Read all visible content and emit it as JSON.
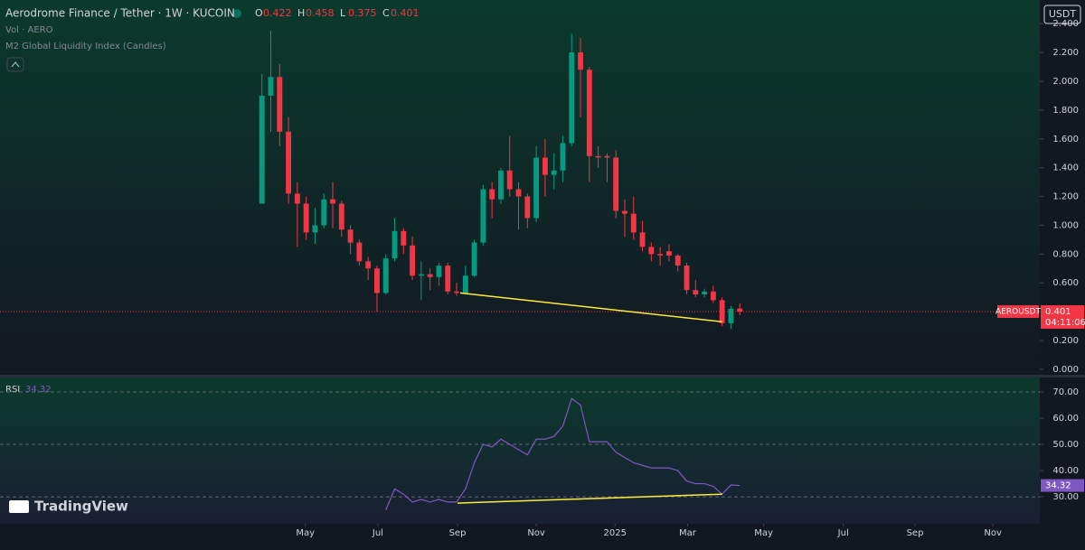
{
  "chart_data": {
    "type": "candlestick",
    "title": "Aerodrome Finance / Tether · 1W · KUCOIN",
    "ohlc_labels": [
      "O",
      "H",
      "L",
      "C"
    ],
    "indicators": [
      "Vol · AERO",
      "M2 Global Liquidity Index (Candles)"
    ],
    "currency": "USDT",
    "symbol": "AEROUSDT",
    "countdown": "04:11:06",
    "logo": "TradingView",
    "up_color": "#089981",
    "down_color": "#f23645",
    "open": [
      1.15,
      1.9,
      2.03,
      1.65,
      1.22,
      1.15,
      0.95,
      1.0,
      1.18,
      1.15,
      0.97,
      0.88,
      0.75,
      0.7,
      0.53,
      0.77,
      0.96,
      0.86,
      0.65,
      0.66,
      0.64,
      0.72,
      0.54,
      0.53,
      0.65,
      0.88,
      1.25,
      1.18,
      1.38,
      1.25,
      1.2,
      1.05,
      1.47,
      1.35,
      1.38,
      1.57,
      2.2,
      2.08,
      1.48,
      1.48,
      1.47,
      1.1,
      1.08,
      0.95,
      0.85,
      0.8,
      0.82,
      0.79,
      0.72,
      0.55,
      0.52,
      0.54,
      0.48,
      0.32,
      0.422
    ],
    "high": [
      2.05,
      2.35,
      2.12,
      1.75,
      1.3,
      1.2,
      1.12,
      1.22,
      1.3,
      1.17,
      1.0,
      0.9,
      0.78,
      0.72,
      0.8,
      1.05,
      0.98,
      0.92,
      0.75,
      0.7,
      0.74,
      0.74,
      0.6,
      0.72,
      0.9,
      1.28,
      1.3,
      1.4,
      1.62,
      1.3,
      1.22,
      1.55,
      1.6,
      1.5,
      1.62,
      2.33,
      2.3,
      2.1,
      1.55,
      1.5,
      1.52,
      1.18,
      1.2,
      1.03,
      0.88,
      0.85,
      0.87,
      0.8,
      0.74,
      0.62,
      0.56,
      0.58,
      0.5,
      0.44,
      0.458
    ],
    "low": [
      1.15,
      1.65,
      1.55,
      1.15,
      0.85,
      0.9,
      0.87,
      0.98,
      0.98,
      0.92,
      0.8,
      0.72,
      0.62,
      0.4,
      0.52,
      0.75,
      0.8,
      0.62,
      0.48,
      0.55,
      0.58,
      0.52,
      0.51,
      0.52,
      0.64,
      0.86,
      1.05,
      1.15,
      1.2,
      0.97,
      0.98,
      1.02,
      1.2,
      1.25,
      1.3,
      1.55,
      1.75,
      1.3,
      1.4,
      1.3,
      1.05,
      0.92,
      0.9,
      0.82,
      0.75,
      0.72,
      0.75,
      0.68,
      0.52,
      0.5,
      0.5,
      0.46,
      0.3,
      0.28,
      0.375
    ],
    "close": [
      1.9,
      2.03,
      1.65,
      1.22,
      1.15,
      0.95,
      1.0,
      1.18,
      1.15,
      0.97,
      0.88,
      0.75,
      0.7,
      0.53,
      0.77,
      0.96,
      0.86,
      0.65,
      0.66,
      0.64,
      0.72,
      0.54,
      0.53,
      0.65,
      0.88,
      1.25,
      1.18,
      1.38,
      1.25,
      1.2,
      1.05,
      1.47,
      1.35,
      1.38,
      1.57,
      2.2,
      2.08,
      1.48,
      1.47,
      1.47,
      1.1,
      1.08,
      0.95,
      0.85,
      0.8,
      0.79,
      0.79,
      0.72,
      0.55,
      0.52,
      0.54,
      0.48,
      0.32,
      0.42,
      0.401
    ],
    "ylim": [
      -0.038,
      2.564
    ],
    "yticks": [
      {
        "value": 0,
        "label": "0.000"
      },
      {
        "value": 0.2,
        "label": "0.200"
      },
      {
        "value": 0.4,
        "label": "0.400"
      },
      {
        "value": 0.6,
        "label": "0.600"
      },
      {
        "value": 0.8,
        "label": "0.800"
      },
      {
        "value": 1,
        "label": "1.000"
      },
      {
        "value": 1.2,
        "label": "1.200"
      },
      {
        "value": 1.4,
        "label": "1.400"
      },
      {
        "value": 1.6,
        "label": "1.600"
      },
      {
        "value": 1.8,
        "label": "1.800"
      },
      {
        "value": 2,
        "label": "2.000"
      },
      {
        "value": 2.2,
        "label": "2.200"
      },
      {
        "value": 2.4,
        "label": "2.400"
      }
    ],
    "xlim": [
      -29.6,
      87.9
    ],
    "xticks": [
      {
        "value": 4.9,
        "label": "May"
      },
      {
        "value": 13.1,
        "label": "Jul"
      },
      {
        "value": 22.1,
        "label": "Sep"
      },
      {
        "value": 31,
        "label": "Nov"
      },
      {
        "value": 39.9,
        "label": "2025"
      },
      {
        "value": 48.1,
        "label": "Mar"
      },
      {
        "value": 56.7,
        "label": "May"
      },
      {
        "value": 65.7,
        "label": "Jul"
      },
      {
        "value": 73.8,
        "label": "Sep"
      },
      {
        "value": 82.6,
        "label": "Nov"
      }
    ],
    "trendline": {
      "x": [
        22.4,
        52
      ],
      "y": [
        0.53,
        0.33
      ],
      "color": "#ffeb3b"
    },
    "rsi": {
      "name": "RSI",
      "color": "#7e57c2",
      "values": [
        null,
        null,
        null,
        null,
        null,
        null,
        null,
        null,
        null,
        null,
        null,
        null,
        null,
        null,
        25,
        33,
        31,
        28,
        29,
        28,
        29,
        28,
        28,
        33,
        43,
        50,
        49,
        52,
        50,
        48,
        46,
        52,
        52,
        53,
        57,
        67.5,
        65,
        51,
        51,
        51,
        47,
        45,
        43,
        42,
        41,
        41,
        41,
        40,
        36,
        35,
        35,
        34,
        31,
        34.5,
        34.32
      ],
      "ylim": [
        19.7,
        75.5
      ],
      "yticks": [
        {
          "value": 30,
          "label": "30.00"
        },
        {
          "value": 40,
          "label": "40.00"
        },
        {
          "value": 50,
          "label": "50.00"
        },
        {
          "value": 60,
          "label": "60.00"
        },
        {
          "value": 70,
          "label": "70.00"
        }
      ],
      "grid_levels": [
        30,
        50,
        70
      ],
      "trendline": {
        "x": [
          22.1,
          52
        ],
        "y": [
          27.6,
          31
        ],
        "color": "#ffeb3b"
      }
    }
  }
}
